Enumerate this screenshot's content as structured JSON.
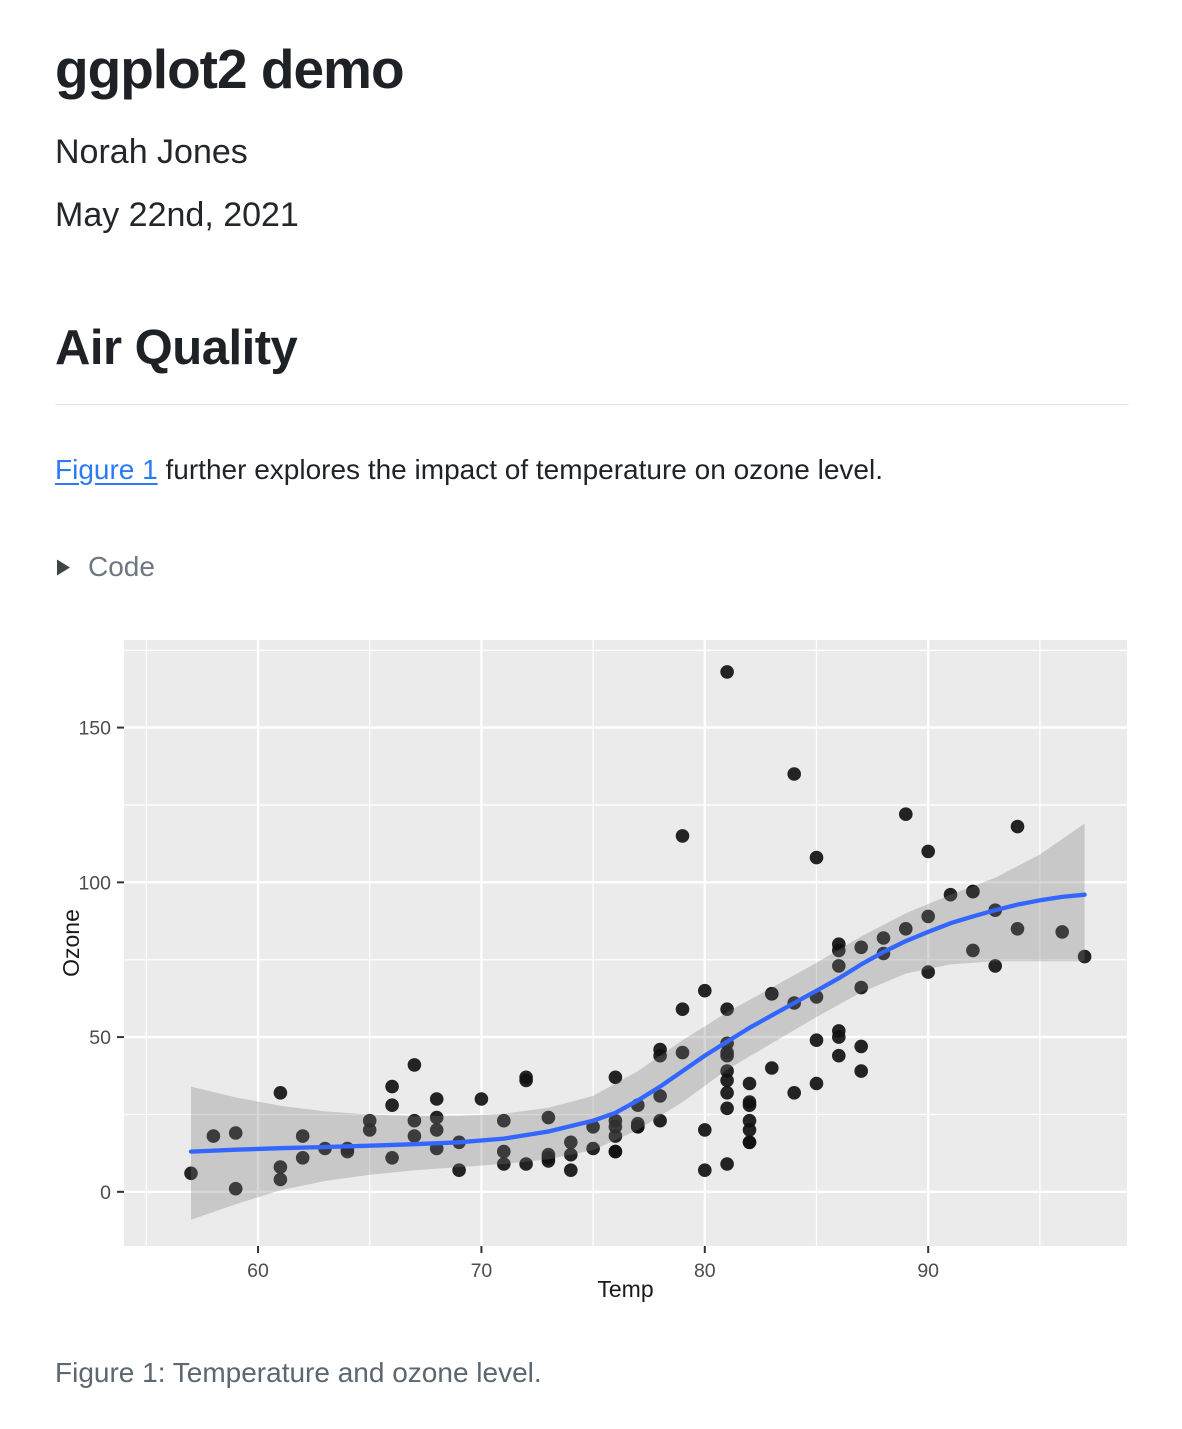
{
  "page": {
    "title": "ggplot2 demo",
    "author": "Norah Jones",
    "date": "May 22nd, 2021",
    "section_heading": "Air Quality",
    "paragraph": {
      "link_text": "Figure 1",
      "rest": " further explores the impact of temperature on ozone level."
    },
    "code_toggle": {
      "label": "Code",
      "icon": "triangle-right-icon"
    },
    "figure_caption": "Figure 1: Temperature and ozone level."
  },
  "chart_data": {
    "type": "scatter",
    "title": "",
    "xlabel": "Temp",
    "ylabel": "Ozone",
    "xlim": [
      54,
      98.9
    ],
    "ylim": [
      -17.5,
      178.3
    ],
    "x_ticks": [
      60,
      70,
      80,
      90
    ],
    "y_ticks": [
      0,
      50,
      100,
      150
    ],
    "x_minor": [
      55,
      65,
      75,
      85,
      95
    ],
    "y_minor": [
      25,
      75,
      125,
      175
    ],
    "grid": "on",
    "legend": "none",
    "points_temp_ozone": [
      [
        67,
        41
      ],
      [
        72,
        36
      ],
      [
        74,
        12
      ],
      [
        62,
        18
      ],
      [
        66,
        28
      ],
      [
        65,
        23
      ],
      [
        59,
        19
      ],
      [
        61,
        8
      ],
      [
        74,
        7
      ],
      [
        69,
        16
      ],
      [
        66,
        11
      ],
      [
        68,
        14
      ],
      [
        58,
        18
      ],
      [
        64,
        14
      ],
      [
        66,
        34
      ],
      [
        57,
        6
      ],
      [
        68,
        30
      ],
      [
        62,
        11
      ],
      [
        59,
        1
      ],
      [
        73,
        11
      ],
      [
        61,
        4
      ],
      [
        61,
        32
      ],
      [
        67,
        23
      ],
      [
        81,
        45
      ],
      [
        79,
        115
      ],
      [
        76,
        37
      ],
      [
        82,
        29
      ],
      [
        90,
        71
      ],
      [
        87,
        39
      ],
      [
        82,
        23
      ],
      [
        77,
        21
      ],
      [
        72,
        37
      ],
      [
        65,
        20
      ],
      [
        73,
        12
      ],
      [
        76,
        13
      ],
      [
        84,
        135
      ],
      [
        85,
        49
      ],
      [
        81,
        32
      ],
      [
        83,
        64
      ],
      [
        83,
        40
      ],
      [
        88,
        77
      ],
      [
        92,
        97
      ],
      [
        92,
        97
      ],
      [
        89,
        85
      ],
      [
        73,
        10
      ],
      [
        81,
        27
      ],
      [
        80,
        7
      ],
      [
        81,
        48
      ],
      [
        82,
        35
      ],
      [
        84,
        61
      ],
      [
        87,
        79
      ],
      [
        85,
        63
      ],
      [
        74,
        16
      ],
      [
        86,
        80
      ],
      [
        85,
        108
      ],
      [
        82,
        20
      ],
      [
        86,
        52
      ],
      [
        88,
        82
      ],
      [
        86,
        50
      ],
      [
        83,
        64
      ],
      [
        81,
        59
      ],
      [
        81,
        39
      ],
      [
        81,
        9
      ],
      [
        82,
        16
      ],
      [
        86,
        78
      ],
      [
        85,
        35
      ],
      [
        87,
        66
      ],
      [
        89,
        122
      ],
      [
        90,
        89
      ],
      [
        90,
        110
      ],
      [
        86,
        44
      ],
      [
        82,
        28
      ],
      [
        80,
        65
      ],
      [
        77,
        22
      ],
      [
        79,
        59
      ],
      [
        76,
        23
      ],
      [
        78,
        31
      ],
      [
        78,
        44
      ],
      [
        77,
        21
      ],
      [
        72,
        9
      ],
      [
        79,
        45
      ],
      [
        81,
        168
      ],
      [
        86,
        73
      ],
      [
        97,
        76
      ],
      [
        94,
        118
      ],
      [
        96,
        84
      ],
      [
        94,
        85
      ],
      [
        91,
        96
      ],
      [
        92,
        78
      ],
      [
        93,
        73
      ],
      [
        93,
        91
      ],
      [
        87,
        47
      ],
      [
        84,
        32
      ],
      [
        80,
        20
      ],
      [
        78,
        23
      ],
      [
        75,
        21
      ],
      [
        73,
        24
      ],
      [
        81,
        44
      ],
      [
        76,
        21
      ],
      [
        77,
        28
      ],
      [
        71,
        9
      ],
      [
        71,
        13
      ],
      [
        78,
        46
      ],
      [
        67,
        18
      ],
      [
        76,
        13
      ],
      [
        68,
        24
      ],
      [
        82,
        16
      ],
      [
        64,
        13
      ],
      [
        71,
        23
      ],
      [
        81,
        36
      ],
      [
        69,
        7
      ],
      [
        63,
        14
      ],
      [
        70,
        30
      ],
      [
        75,
        14
      ],
      [
        76,
        18
      ],
      [
        68,
        20
      ]
    ],
    "smooth_line": {
      "x": [
        57,
        59,
        61,
        63,
        65,
        67,
        69,
        71,
        73,
        75,
        76,
        77,
        78,
        79,
        80,
        81,
        82,
        83,
        84,
        85,
        86,
        87,
        88,
        89,
        90,
        91,
        92,
        93,
        94,
        95,
        96,
        97
      ],
      "y": [
        13,
        13.6,
        14.1,
        14.5,
        14.9,
        15.4,
        16,
        17.2,
        19.5,
        23,
        25.5,
        29.5,
        34,
        39,
        44,
        48.5,
        53,
        57,
        61,
        65,
        69,
        73.5,
        77.5,
        81,
        84,
        86.8,
        89,
        91,
        92.8,
        94.2,
        95.3,
        96
      ]
    },
    "confidence_ribbon": {
      "x": [
        57,
        59,
        61,
        63,
        65,
        67,
        69,
        71,
        73,
        75,
        77,
        79,
        81,
        83,
        85,
        87,
        89,
        91,
        93,
        95,
        97
      ],
      "lower": [
        -9,
        -4,
        0.5,
        3.5,
        5.5,
        7,
        8,
        9,
        10.5,
        13.5,
        20,
        29,
        39.5,
        48,
        56.5,
        64.5,
        70.5,
        73.5,
        74.5,
        74.5,
        74.5
      ],
      "upper": [
        34,
        30.5,
        27.8,
        26,
        25,
        24.5,
        24.5,
        25.2,
        27.2,
        31,
        39,
        49,
        58,
        66,
        74,
        82.5,
        90,
        96,
        101.5,
        109,
        119
      ]
    },
    "colors": {
      "panel": "#EBEBEB",
      "grid": "#FFFFFF",
      "point": "#111111",
      "smooth": "#3366FF",
      "ribbon": "rgba(120,120,120,0.30)",
      "tick_text": "#4d4d4d",
      "axis_title": "#1a1a1a",
      "tick_mark": "#333333"
    }
  }
}
